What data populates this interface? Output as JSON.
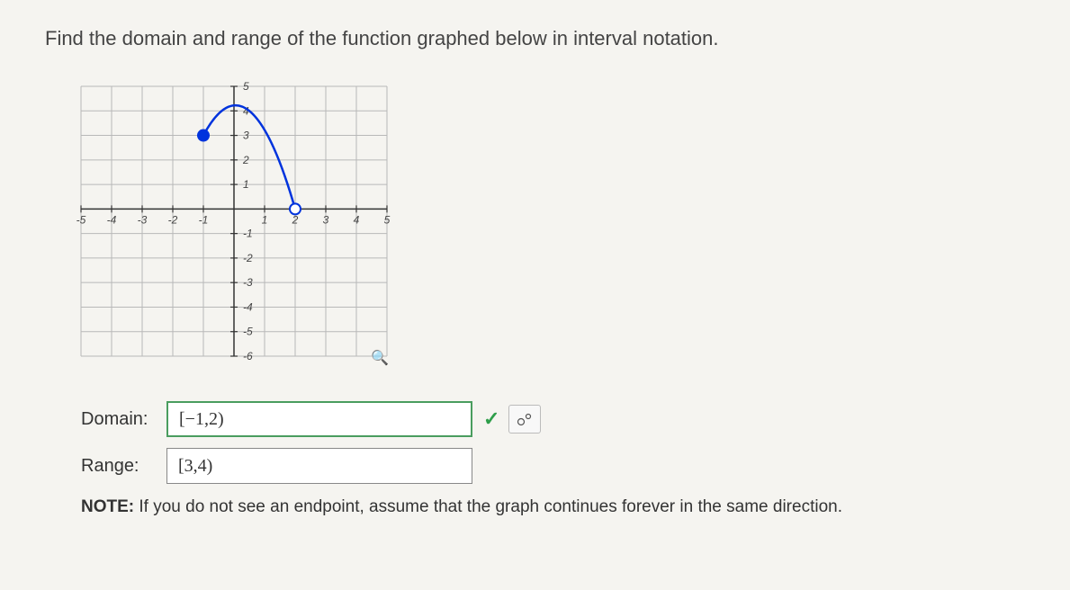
{
  "question": "Find the domain and range of the function graphed below in interval notation.",
  "graph": {
    "xlim": [
      -5,
      5
    ],
    "ylim": [
      -6,
      5
    ],
    "xticks": [
      -5,
      -4,
      -3,
      -2,
      -1,
      1,
      2,
      3,
      4,
      5
    ],
    "yticks": [
      -6,
      -5,
      -4,
      -3,
      -2,
      -1,
      1,
      2,
      3,
      4,
      5
    ],
    "grid_color": "#b8b8b8",
    "axis_color": "#333333",
    "tick_label_color": "#444444",
    "tick_fontsize": 12,
    "curve": {
      "color": "#0033dd",
      "width": 2.5,
      "start": {
        "x": -1,
        "y": 3,
        "type": "closed"
      },
      "vertex": {
        "x": 0.5,
        "y": 4
      },
      "end": {
        "x": 2,
        "y": 0,
        "type": "open"
      },
      "closed_fill": "#0033dd",
      "open_fill": "#ffffff",
      "marker_radius": 6
    },
    "background": "#f5f4f0"
  },
  "answers": {
    "domain_label": "Domain:",
    "domain_value": "[−1,2)",
    "domain_correct": true,
    "range_label": "Range:",
    "range_value": "[3,4)"
  },
  "formula_button": "σ°",
  "note": {
    "prefix": "NOTE:",
    "body": " If you do not see an endpoint, assume that the graph continues forever in the same direction."
  },
  "zoom_icon": "�🔍"
}
